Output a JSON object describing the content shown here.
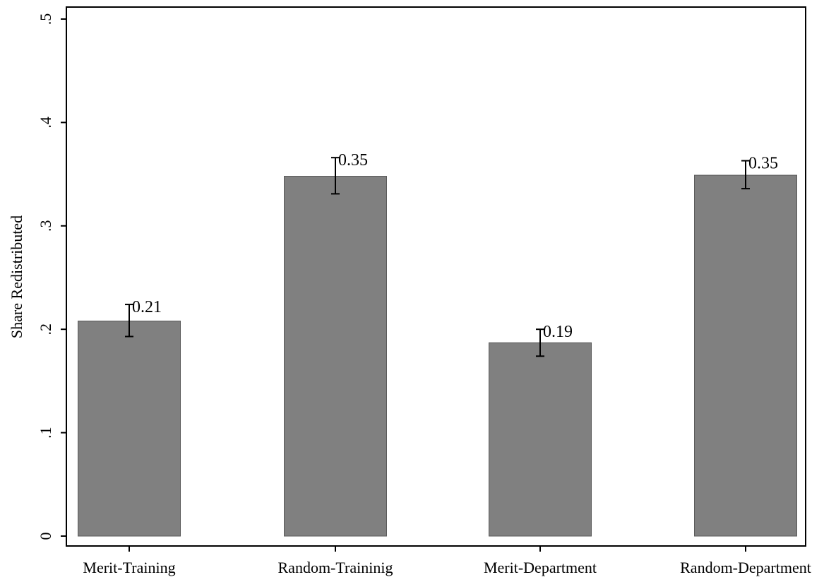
{
  "chart_data": {
    "type": "bar",
    "title": "",
    "xlabel": "",
    "ylabel": "Share Redistributed",
    "ylim": [
      0,
      0.5
    ],
    "yticks": [
      0,
      0.1,
      0.2,
      0.3,
      0.4,
      0.5
    ],
    "ytick_labels": [
      "0",
      ".1",
      ".2",
      ".3",
      ".4",
      ".5"
    ],
    "ytick_orientation": "rotated-vertical",
    "categories": [
      "Merit-Training",
      "Random-Traininig",
      "Merit-Department",
      "Random-Department"
    ],
    "values": [
      0.208,
      0.348,
      0.187,
      0.349
    ],
    "data_labels": [
      "0.21",
      "0.35",
      "0.19",
      "0.35"
    ],
    "error_bars": [
      {
        "low": 0.193,
        "high": 0.224
      },
      {
        "low": 0.331,
        "high": 0.366
      },
      {
        "low": 0.174,
        "high": 0.2
      },
      {
        "low": 0.336,
        "high": 0.363
      }
    ],
    "grid": false,
    "legend": "none",
    "colors": {
      "bar_fill": "#808080",
      "bar_stroke": "#595959",
      "axis": "#000000",
      "error_bar": "#000000",
      "background": "#ffffff"
    }
  }
}
